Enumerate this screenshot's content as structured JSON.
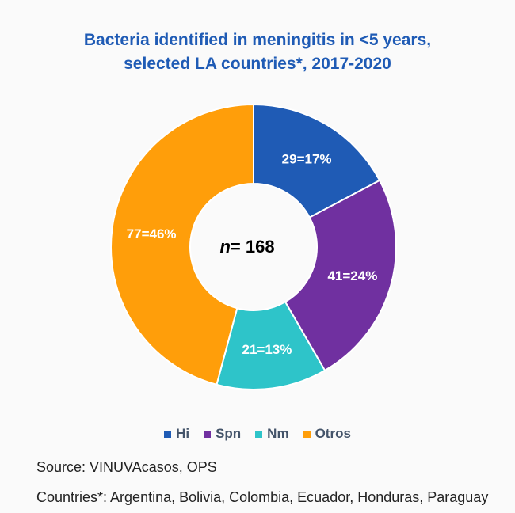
{
  "chart_data": {
    "type": "pie",
    "donut": true,
    "title": "Bacteria identified in meningitis in <5 years, selected LA countries*, 2017-2020",
    "title_lines": [
      "Bacteria identified in meningitis in <5 years,",
      "selected LA countries*, 2017-2020"
    ],
    "center_label_prefix": "n",
    "center_label_value": "= 168",
    "categories": [
      "Hi",
      "Spn",
      "Nm",
      "Otros"
    ],
    "values": [
      29,
      41,
      21,
      77
    ],
    "percents": [
      17,
      24,
      13,
      46
    ],
    "data_labels": [
      "29=17%",
      "41=24%",
      "21=13%",
      "77=46%"
    ],
    "colors": [
      "#1f5bb5",
      "#7030a0",
      "#2ec4c9",
      "#ff9e0a"
    ],
    "legend_position": "bottom"
  },
  "source": "Source: VINUVAcasos, OPS",
  "countries": "Countries*: Argentina, Bolivia, Colombia, Ecuador, Honduras, Paraguay"
}
